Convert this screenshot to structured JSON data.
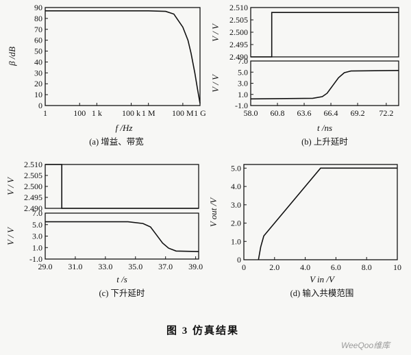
{
  "figure_caption": "图 3    仿真结果",
  "watermark": "WeeQoo维库",
  "chart_data": [
    {
      "id": "a",
      "type": "line",
      "caption": "(a) 增益、带宽",
      "xlabel": "f /Hz",
      "ylabel": "β /dB",
      "x_scale": "log",
      "xlim": [
        1,
        1000000000
      ],
      "x_ticks": [
        "1",
        "100",
        "1 k",
        "100 k",
        "1 M",
        "100 M",
        "1 G"
      ],
      "ylim": [
        0,
        90
      ],
      "y_ticks": [
        "0",
        "10",
        "20",
        "30",
        "40",
        "50",
        "60",
        "70",
        "80",
        "90"
      ],
      "series": [
        {
          "x": [
            1,
            1000000,
            10000000,
            30000000,
            100000000,
            200000000,
            300000000,
            500000000,
            700000000,
            1000000000
          ],
          "y": [
            87,
            87,
            86.5,
            84,
            72,
            60,
            48,
            30,
            16,
            2
          ]
        }
      ]
    },
    {
      "id": "b-top",
      "type": "line",
      "xlim": [
        58.0,
        73.5
      ],
      "ylabel": "V / V",
      "ylim": [
        2.49,
        2.51
      ],
      "y_ticks": [
        "2.510",
        "2.505",
        "2.500",
        "2.495",
        "2.490"
      ],
      "series": [
        {
          "x": [
            58.0,
            60.2,
            60.2,
            73.5
          ],
          "y": [
            2.49,
            2.49,
            2.508,
            2.508
          ]
        }
      ]
    },
    {
      "id": "b-bottom",
      "type": "line",
      "caption": "(b) 上升延时",
      "xlabel": "t /ns",
      "x_ticks": [
        "58.0",
        "60.8",
        "63.6",
        "66.4",
        "69.2",
        "72.2"
      ],
      "xlim": [
        58.0,
        73.5
      ],
      "ylabel": "V / V",
      "ylim": [
        -1.0,
        7.0
      ],
      "y_ticks": [
        "7.0",
        "5.0",
        "3.0",
        "1.0",
        "-1.0"
      ],
      "series": [
        {
          "x": [
            58.0,
            64.5,
            65.5,
            66.0,
            66.6,
            67.2,
            67.8,
            68.5,
            73.5
          ],
          "y": [
            0.2,
            0.3,
            0.6,
            1.2,
            2.6,
            4.0,
            4.9,
            5.2,
            5.3
          ]
        }
      ]
    },
    {
      "id": "c-top",
      "type": "line",
      "xlim": [
        29.0,
        39.2
      ],
      "ylabel": "V / V",
      "ylim": [
        2.49,
        2.51
      ],
      "y_ticks": [
        "2.510",
        "2.505",
        "2.500",
        "2.495",
        "2.490"
      ],
      "series": [
        {
          "x": [
            29.0,
            30.1,
            30.1,
            39.2
          ],
          "y": [
            2.51,
            2.51,
            2.49,
            2.49
          ]
        }
      ]
    },
    {
      "id": "c-bottom",
      "type": "line",
      "caption": "(c) 下升延时",
      "xlabel": "t /s",
      "x_ticks": [
        "29.0",
        "31.0",
        "33.0",
        "35.0",
        "37.0",
        "39.0"
      ],
      "xlim": [
        29.0,
        39.2
      ],
      "ylabel": "V / V",
      "ylim": [
        -1.0,
        7.0
      ],
      "y_ticks": [
        "7.0",
        "5.0",
        "3.0",
        "1.0",
        "-1.0"
      ],
      "series": [
        {
          "x": [
            29.0,
            34.5,
            35.5,
            36.0,
            36.4,
            36.8,
            37.2,
            37.7,
            39.2
          ],
          "y": [
            5.5,
            5.5,
            5.2,
            4.6,
            3.2,
            1.8,
            0.9,
            0.4,
            0.3
          ]
        }
      ]
    },
    {
      "id": "d",
      "type": "line",
      "caption": "(d) 输入共模范围",
      "xlabel": "V in /V",
      "ylabel": "V out /V",
      "xlim": [
        0,
        10
      ],
      "x_ticks": [
        "0",
        "2.0",
        "4.0",
        "6.0",
        "8.0",
        "10"
      ],
      "ylim": [
        0,
        5.2
      ],
      "y_ticks": [
        "0",
        "1.0",
        "2.0",
        "3.0",
        "4.0",
        "5.0"
      ],
      "series": [
        {
          "x": [
            0.95,
            1.1,
            1.3,
            1.6,
            5.0,
            10
          ],
          "y": [
            0,
            0.7,
            1.3,
            1.6,
            5.0,
            5.0
          ]
        }
      ]
    }
  ]
}
